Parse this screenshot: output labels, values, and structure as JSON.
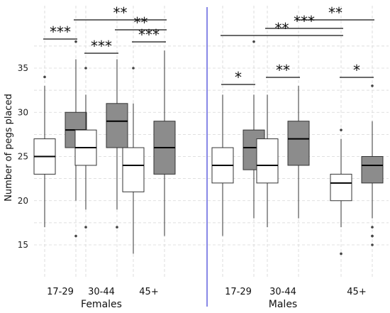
{
  "chart_data": {
    "type": "box",
    "ylabel": "Number of pegs placed",
    "ylim": [
      13,
      39
    ],
    "yticks": [
      15,
      20,
      25,
      30,
      35
    ],
    "grid": "dashed",
    "groups": [
      {
        "name": "Females",
        "categories": [
          {
            "label": "17-29",
            "boxes": [
              {
                "fill": "#ffffff",
                "whisker_low": 17,
                "q1": 23,
                "median": 25,
                "q3": 27,
                "whisker_high": 33,
                "outliers": [
                  34
                ]
              },
              {
                "fill": "#8c8c8c",
                "whisker_low": 20,
                "q1": 26,
                "median": 28,
                "q3": 30,
                "whisker_high": 36,
                "outliers": [
                  16,
                  38
                ]
              }
            ]
          },
          {
            "label": "30-44",
            "boxes": [
              {
                "fill": "#ffffff",
                "whisker_low": 19,
                "q1": 24,
                "median": 26,
                "q3": 28,
                "whisker_high": 32,
                "outliers": [
                  17,
                  35
                ]
              },
              {
                "fill": "#8c8c8c",
                "whisker_low": 19,
                "q1": 26,
                "median": 29,
                "q3": 31,
                "whisker_high": 36,
                "outliers": [
                  17
                ]
              }
            ]
          },
          {
            "label": "45+",
            "boxes": [
              {
                "fill": "#ffffff",
                "whisker_low": 14,
                "q1": 21,
                "median": 24,
                "q3": 26,
                "whisker_high": 31,
                "outliers": [
                  35
                ]
              },
              {
                "fill": "#8c8c8c",
                "whisker_low": 16,
                "q1": 23,
                "median": 26,
                "q3": 29,
                "whisker_high": 37,
                "outliers": []
              }
            ]
          }
        ]
      },
      {
        "name": "Males",
        "categories": [
          {
            "label": "17-29",
            "boxes": [
              {
                "fill": "#ffffff",
                "whisker_low": 16,
                "q1": 22,
                "median": 24,
                "q3": 26,
                "whisker_high": 32,
                "outliers": []
              },
              {
                "fill": "#8c8c8c",
                "whisker_low": 18,
                "q1": 23.5,
                "median": 26,
                "q3": 28,
                "whisker_high": 32,
                "outliers": [
                  38
                ]
              }
            ]
          },
          {
            "label": "30-44",
            "boxes": [
              {
                "fill": "#ffffff",
                "whisker_low": 17,
                "q1": 22,
                "median": 24,
                "q3": 27,
                "whisker_high": 32,
                "outliers": []
              },
              {
                "fill": "#8c8c8c",
                "whisker_low": 18,
                "q1": 24,
                "median": 27,
                "q3": 29,
                "whisker_high": 33,
                "outliers": []
              }
            ]
          },
          {
            "label": "45+",
            "boxes": [
              {
                "fill": "#ffffff",
                "whisker_low": 17,
                "q1": 20,
                "median": 22,
                "q3": 23,
                "whisker_high": 27,
                "outliers": [
                  14,
                  28
                ]
              },
              {
                "fill": "#8c8c8c",
                "whisker_low": 18,
                "q1": 22,
                "median": 24,
                "q3": 25,
                "whisker_high": 29,
                "outliers": [
                  15,
                  16,
                  16,
                  17,
                  33
                ]
              }
            ]
          }
        ]
      }
    ],
    "significance": [
      {
        "group": 0,
        "from": [
          0,
          0
        ],
        "to": [
          0,
          1
        ],
        "label": "***"
      },
      {
        "group": 0,
        "from": [
          1,
          0
        ],
        "to": [
          1,
          1
        ],
        "label": "***"
      },
      {
        "group": 0,
        "from": [
          2,
          0
        ],
        "to": [
          2,
          1
        ],
        "label": "***"
      },
      {
        "group": 0,
        "from": [
          0,
          1
        ],
        "to": [
          2,
          1
        ],
        "label": "**"
      },
      {
        "group": 0,
        "from": [
          1,
          1
        ],
        "to": [
          2,
          1
        ],
        "label": "**"
      },
      {
        "group": 1,
        "from": [
          0,
          0
        ],
        "to": [
          0,
          1
        ],
        "label": "*"
      },
      {
        "group": 1,
        "from": [
          1,
          0
        ],
        "to": [
          1,
          1
        ],
        "label": "**"
      },
      {
        "group": 1,
        "from": [
          2,
          0
        ],
        "to": [
          2,
          1
        ],
        "label": "*"
      },
      {
        "group": 1,
        "from": [
          0,
          0
        ],
        "to": [
          2,
          0
        ],
        "label": "**"
      },
      {
        "group": 1,
        "from": [
          1,
          1
        ],
        "to": [
          2,
          1
        ],
        "label": "**"
      },
      {
        "group": 1,
        "from": [
          1,
          0
        ],
        "to": [
          2,
          0
        ],
        "label": "***"
      }
    ],
    "divider_color": "#3a3ad6"
  }
}
